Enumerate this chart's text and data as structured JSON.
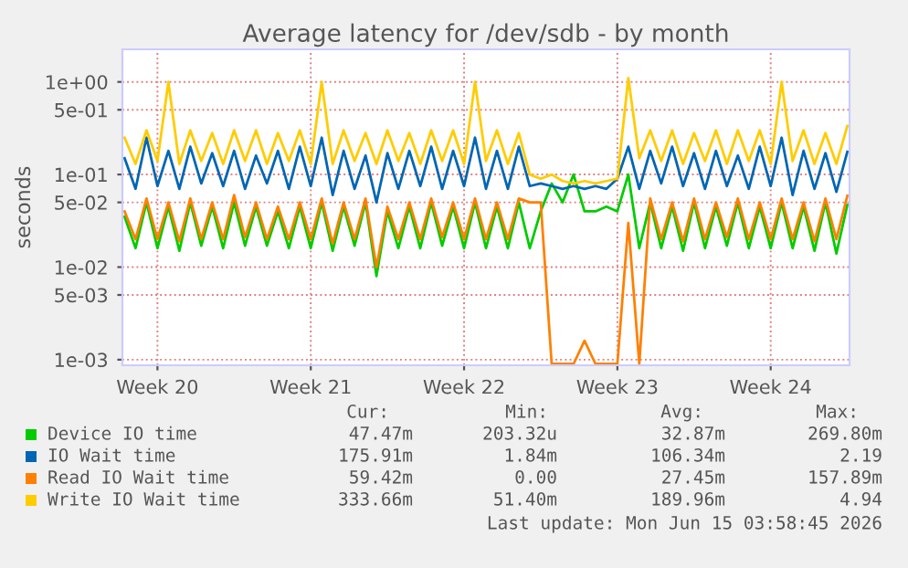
{
  "chart_data": {
    "type": "line",
    "title": "Average latency for /dev/sdb - by month",
    "ylabel": "seconds",
    "categories": [
      null,
      null,
      null,
      "Week 20",
      null,
      null,
      null,
      null,
      null,
      null,
      null,
      null,
      null,
      null,
      null,
      null,
      null,
      "Week 21",
      null,
      null,
      null,
      null,
      null,
      null,
      null,
      null,
      null,
      null,
      null,
      null,
      null,
      "Week 22",
      null,
      null,
      null,
      null,
      null,
      null,
      null,
      null,
      null,
      null,
      null,
      null,
      null,
      "Week 23",
      null,
      null,
      null,
      null,
      null,
      null,
      null,
      null,
      null,
      null,
      null,
      null,
      null,
      "Week 24",
      null,
      null,
      null,
      null,
      null,
      null,
      null
    ],
    "series": [
      {
        "name": "Device IO time",
        "color": "#00cc00",
        "values": [
          0.035,
          0.016,
          0.05,
          0.016,
          0.045,
          0.015,
          0.05,
          0.017,
          0.045,
          0.016,
          0.05,
          0.017,
          0.045,
          0.017,
          0.04,
          0.016,
          0.045,
          0.016,
          0.05,
          0.015,
          0.045,
          0.017,
          0.05,
          0.008,
          0.04,
          0.016,
          0.045,
          0.016,
          0.05,
          0.017,
          0.045,
          0.016,
          0.05,
          0.016,
          0.045,
          0.016,
          0.05,
          0.016,
          0.04,
          0.08,
          0.05,
          0.1,
          0.04,
          0.04,
          0.045,
          0.04,
          0.1,
          0.016,
          0.05,
          0.016,
          0.045,
          0.015,
          0.05,
          0.016,
          0.045,
          0.017,
          0.05,
          0.016,
          0.045,
          0.016,
          0.05,
          0.016,
          0.045,
          0.015,
          0.05,
          0.014,
          0.047
        ]
      },
      {
        "name": "IO Wait time",
        "color": "#0066b3",
        "values": [
          0.15,
          0.07,
          0.25,
          0.075,
          0.18,
          0.07,
          0.2,
          0.08,
          0.17,
          0.075,
          0.18,
          0.07,
          0.16,
          0.08,
          0.18,
          0.07,
          0.2,
          0.075,
          0.25,
          0.06,
          0.18,
          0.07,
          0.16,
          0.05,
          0.17,
          0.07,
          0.18,
          0.075,
          0.2,
          0.07,
          0.18,
          0.075,
          0.25,
          0.07,
          0.18,
          0.07,
          0.2,
          0.075,
          0.08,
          0.075,
          0.07,
          0.075,
          0.07,
          0.075,
          0.07,
          0.09,
          0.2,
          0.07,
          0.18,
          0.08,
          0.2,
          0.075,
          0.17,
          0.07,
          0.18,
          0.075,
          0.16,
          0.07,
          0.2,
          0.075,
          0.25,
          0.06,
          0.18,
          0.07,
          0.17,
          0.065,
          0.176
        ]
      },
      {
        "name": "Read IO Wait time",
        "color": "#ff8000",
        "values": [
          0.04,
          0.02,
          0.055,
          0.02,
          0.05,
          0.019,
          0.055,
          0.02,
          0.05,
          0.02,
          0.06,
          0.021,
          0.05,
          0.02,
          0.045,
          0.02,
          0.05,
          0.02,
          0.055,
          0.018,
          0.05,
          0.02,
          0.055,
          0.01,
          0.045,
          0.02,
          0.05,
          0.02,
          0.055,
          0.021,
          0.05,
          0.02,
          0.055,
          0.02,
          0.05,
          0.02,
          0.055,
          0.05,
          0.05,
          0.0009,
          0.0009,
          0.0009,
          0.0016,
          0.0009,
          0.0009,
          0.0009,
          0.03,
          0.0009,
          0.055,
          0.02,
          0.05,
          0.019,
          0.055,
          0.02,
          0.05,
          0.021,
          0.055,
          0.02,
          0.05,
          0.02,
          0.055,
          0.02,
          0.05,
          0.019,
          0.055,
          0.02,
          0.059
        ]
      },
      {
        "name": "Write IO Wait time",
        "color": "#ffcc00",
        "values": [
          0.25,
          0.13,
          0.3,
          0.14,
          1.0,
          0.13,
          0.3,
          0.14,
          0.28,
          0.13,
          0.3,
          0.14,
          0.3,
          0.13,
          0.28,
          0.14,
          0.3,
          0.13,
          1.0,
          0.13,
          0.3,
          0.14,
          0.28,
          0.13,
          0.3,
          0.14,
          0.28,
          0.13,
          0.3,
          0.14,
          0.3,
          0.13,
          1.0,
          0.14,
          0.3,
          0.13,
          0.28,
          0.1,
          0.09,
          0.1,
          0.085,
          0.08,
          0.085,
          0.08,
          0.085,
          0.09,
          1.1,
          0.15,
          0.3,
          0.14,
          0.3,
          0.13,
          0.28,
          0.14,
          0.3,
          0.13,
          0.3,
          0.14,
          0.3,
          0.13,
          1.0,
          0.14,
          0.3,
          0.13,
          0.28,
          0.13,
          0.334
        ]
      }
    ],
    "log": "y",
    "ylim": [
      0.00087,
      2.25
    ],
    "yticks": [
      {
        "value": 0.001,
        "label": "1e-03"
      },
      {
        "value": 0.005,
        "label": "5e-03"
      },
      {
        "value": 0.01,
        "label": "1e-02"
      },
      {
        "value": 0.05,
        "label": "5e-02"
      },
      {
        "value": 0.1,
        "label": "1e-01"
      },
      {
        "value": 0.5,
        "label": "5e-01"
      },
      {
        "value": 1,
        "label": "1e+00"
      }
    ],
    "grid": true,
    "legend": "bottom",
    "marker": "none",
    "line_style": "solid",
    "annotations": [
      "Cur:",
      "Min:",
      "Avg:",
      "Max:",
      "47.47m",
      "203.32u",
      "32.87m",
      "269.80m",
      "175.91m",
      "1.84m",
      "106.34m",
      "2.19",
      "59.42m",
      "0.00",
      "27.45m",
      "157.89m",
      "333.66m",
      "51.40m",
      "189.96m",
      "4.94",
      "Last update: Mon Jun 15 03:58:45 2026"
    ]
  }
}
